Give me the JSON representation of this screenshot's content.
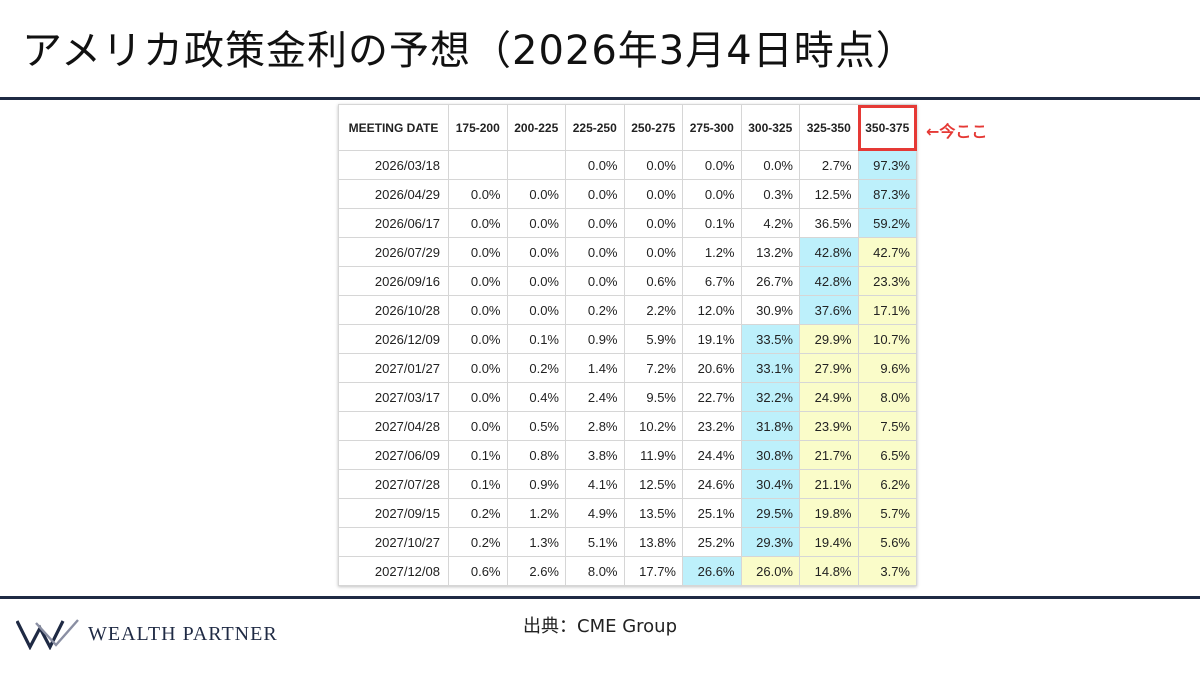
{
  "header": {
    "title": "アメリカ政策金利の予想（2026年3月4日時点）"
  },
  "table": {
    "columns": [
      "MEETING DATE",
      "175-200",
      "200-225",
      "225-250",
      "250-275",
      "275-300",
      "300-325",
      "325-350",
      "350-375"
    ],
    "current_column_index": 8,
    "rows": [
      {
        "date": "2026/03/18",
        "values": [
          "",
          "",
          "0.0%",
          "0.0%",
          "0.0%",
          "0.0%",
          "2.7%",
          "97.3%"
        ],
        "highlight": [
          "",
          "",
          "",
          "",
          "",
          "",
          "",
          "blue"
        ]
      },
      {
        "date": "2026/04/29",
        "values": [
          "0.0%",
          "0.0%",
          "0.0%",
          "0.0%",
          "0.0%",
          "0.3%",
          "12.5%",
          "87.3%"
        ],
        "highlight": [
          "",
          "",
          "",
          "",
          "",
          "",
          "",
          "blue"
        ]
      },
      {
        "date": "2026/06/17",
        "values": [
          "0.0%",
          "0.0%",
          "0.0%",
          "0.0%",
          "0.1%",
          "4.2%",
          "36.5%",
          "59.2%"
        ],
        "highlight": [
          "",
          "",
          "",
          "",
          "",
          "",
          "",
          "blue"
        ]
      },
      {
        "date": "2026/07/29",
        "values": [
          "0.0%",
          "0.0%",
          "0.0%",
          "0.0%",
          "1.2%",
          "13.2%",
          "42.8%",
          "42.7%"
        ],
        "highlight": [
          "",
          "",
          "",
          "",
          "",
          "",
          "blue",
          "yellow"
        ]
      },
      {
        "date": "2026/09/16",
        "values": [
          "0.0%",
          "0.0%",
          "0.0%",
          "0.6%",
          "6.7%",
          "26.7%",
          "42.8%",
          "23.3%"
        ],
        "highlight": [
          "",
          "",
          "",
          "",
          "",
          "",
          "blue",
          "yellow"
        ]
      },
      {
        "date": "2026/10/28",
        "values": [
          "0.0%",
          "0.0%",
          "0.2%",
          "2.2%",
          "12.0%",
          "30.9%",
          "37.6%",
          "17.1%"
        ],
        "highlight": [
          "",
          "",
          "",
          "",
          "",
          "",
          "blue",
          "yellow"
        ]
      },
      {
        "date": "2026/12/09",
        "values": [
          "0.0%",
          "0.1%",
          "0.9%",
          "5.9%",
          "19.1%",
          "33.5%",
          "29.9%",
          "10.7%"
        ],
        "highlight": [
          "",
          "",
          "",
          "",
          "",
          "blue",
          "yellow",
          "yellow"
        ]
      },
      {
        "date": "2027/01/27",
        "values": [
          "0.0%",
          "0.2%",
          "1.4%",
          "7.2%",
          "20.6%",
          "33.1%",
          "27.9%",
          "9.6%"
        ],
        "highlight": [
          "",
          "",
          "",
          "",
          "",
          "blue",
          "yellow",
          "yellow"
        ]
      },
      {
        "date": "2027/03/17",
        "values": [
          "0.0%",
          "0.4%",
          "2.4%",
          "9.5%",
          "22.7%",
          "32.2%",
          "24.9%",
          "8.0%"
        ],
        "highlight": [
          "",
          "",
          "",
          "",
          "",
          "blue",
          "yellow",
          "yellow"
        ]
      },
      {
        "date": "2027/04/28",
        "values": [
          "0.0%",
          "0.5%",
          "2.8%",
          "10.2%",
          "23.2%",
          "31.8%",
          "23.9%",
          "7.5%"
        ],
        "highlight": [
          "",
          "",
          "",
          "",
          "",
          "blue",
          "yellow",
          "yellow"
        ]
      },
      {
        "date": "2027/06/09",
        "values": [
          "0.1%",
          "0.8%",
          "3.8%",
          "11.9%",
          "24.4%",
          "30.8%",
          "21.7%",
          "6.5%"
        ],
        "highlight": [
          "",
          "",
          "",
          "",
          "",
          "blue",
          "yellow",
          "yellow"
        ]
      },
      {
        "date": "2027/07/28",
        "values": [
          "0.1%",
          "0.9%",
          "4.1%",
          "12.5%",
          "24.6%",
          "30.4%",
          "21.1%",
          "6.2%"
        ],
        "highlight": [
          "",
          "",
          "",
          "",
          "",
          "blue",
          "yellow",
          "yellow"
        ]
      },
      {
        "date": "2027/09/15",
        "values": [
          "0.2%",
          "1.2%",
          "4.9%",
          "13.5%",
          "25.1%",
          "29.5%",
          "19.8%",
          "5.7%"
        ],
        "highlight": [
          "",
          "",
          "",
          "",
          "",
          "blue",
          "yellow",
          "yellow"
        ]
      },
      {
        "date": "2027/10/27",
        "values": [
          "0.2%",
          "1.3%",
          "5.1%",
          "13.8%",
          "25.2%",
          "29.3%",
          "19.4%",
          "5.6%"
        ],
        "highlight": [
          "",
          "",
          "",
          "",
          "",
          "blue",
          "yellow",
          "yellow"
        ]
      },
      {
        "date": "2027/12/08",
        "values": [
          "0.6%",
          "2.6%",
          "8.0%",
          "17.7%",
          "26.6%",
          "26.0%",
          "14.8%",
          "3.7%"
        ],
        "highlight": [
          "",
          "",
          "",
          "",
          "blue",
          "yellow",
          "yellow",
          "yellow"
        ]
      }
    ]
  },
  "annotation": {
    "text": "←今ここ",
    "color": "#e53935"
  },
  "source": {
    "text": "出典：CME Group"
  },
  "logo": {
    "text": "WEALTH PARTNER",
    "icon": "wp-logo-mark"
  },
  "colors": {
    "navy": "#1f2a44",
    "blue_cell": "#bdf0fb",
    "yellow_cell": "#fafcc9",
    "accent_red": "#e53935"
  }
}
